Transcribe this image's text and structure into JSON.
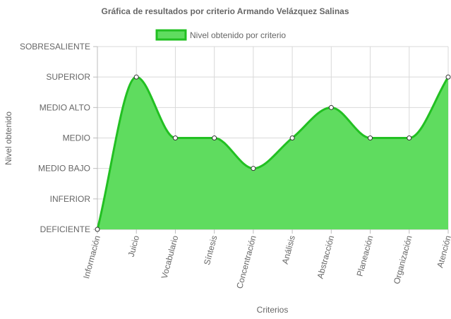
{
  "chart_data": {
    "type": "line",
    "title": "Gráfica de resultados por criterio Armando Velázquez Salinas",
    "xlabel": "Criterios",
    "ylabel": "Nivel obtenido",
    "y_levels": [
      "DEFICIENTE",
      "INFERIOR",
      "MEDIO BAJO",
      "MEDIO",
      "MEDIO ALTO",
      "SUPERIOR",
      "SOBRESALIENTE"
    ],
    "ylim": [
      0,
      6
    ],
    "categories": [
      "Información",
      "Juicio",
      "Vocabulario",
      "Síntesis",
      "Concentración",
      "Análisis",
      "Abstracción",
      "Planeación",
      "Organización",
      "Atención"
    ],
    "series": [
      {
        "name": "Nivel obtenido por criterio",
        "values": [
          0,
          5,
          3,
          3,
          2,
          3,
          4,
          3,
          3,
          5
        ],
        "fill": true,
        "smooth": true
      }
    ],
    "legend": "top",
    "grid": true,
    "colors": {
      "line": "#22c022",
      "fill": "#5fdc5f",
      "point_fill": "#ffffff",
      "point_stroke": "#333333"
    }
  }
}
